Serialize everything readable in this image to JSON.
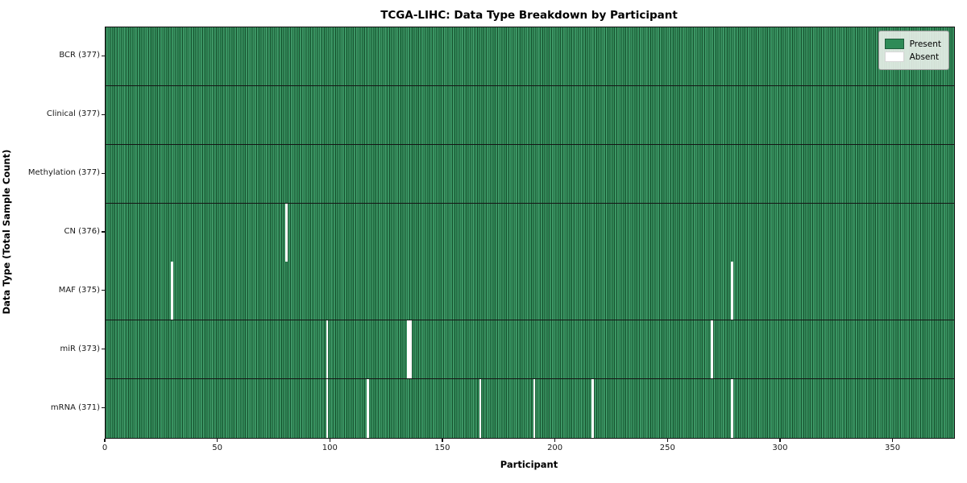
{
  "title": "TCGA-LIHC: Data Type Breakdown by Participant",
  "xlabel": "Participant",
  "ylabel": "Data Type (Total Sample Count)",
  "legend": {
    "present_label": "Present",
    "absent_label": "Absent",
    "position": "upper right"
  },
  "colors": {
    "present": "#2e8b57",
    "present_highlight": "#469d6e",
    "cell_edge": "#17522f",
    "absent": "#ffffff",
    "divider": "#151515",
    "legend_background": "#eef2ee"
  },
  "chart_data": {
    "type": "heatmap",
    "title": "TCGA-LIHC: Data Type Breakdown by Participant",
    "xlabel": "Participant",
    "ylabel": "Data Type (Total Sample Count)",
    "legend_entries": [
      "Present",
      "Absent"
    ],
    "legend_position": "upper right",
    "n_participants": 377,
    "xlim": [
      0,
      377
    ],
    "x_ticks": [
      0,
      50,
      100,
      150,
      200,
      250,
      300,
      350
    ],
    "rows": [
      {
        "name": "BCR",
        "label": "BCR (377)",
        "total": 377,
        "absent_indices": []
      },
      {
        "name": "Clinical",
        "label": "Clinical (377)",
        "total": 377,
        "absent_indices": []
      },
      {
        "name": "Methylation",
        "label": "Methylation (377)",
        "total": 377,
        "absent_indices": []
      },
      {
        "name": "CN",
        "label": "CN (376)",
        "total": 376,
        "absent_indices": [
          80
        ]
      },
      {
        "name": "MAF",
        "label": "MAF (375)",
        "total": 375,
        "absent_indices": [
          29,
          278
        ]
      },
      {
        "name": "miR",
        "label": "miR (373)",
        "total": 373,
        "absent_indices": [
          98,
          134,
          135,
          269
        ]
      },
      {
        "name": "mRNA",
        "label": "mRNA (371)",
        "total": 371,
        "absent_indices": [
          98,
          116,
          166,
          190,
          216,
          278
        ]
      }
    ]
  }
}
